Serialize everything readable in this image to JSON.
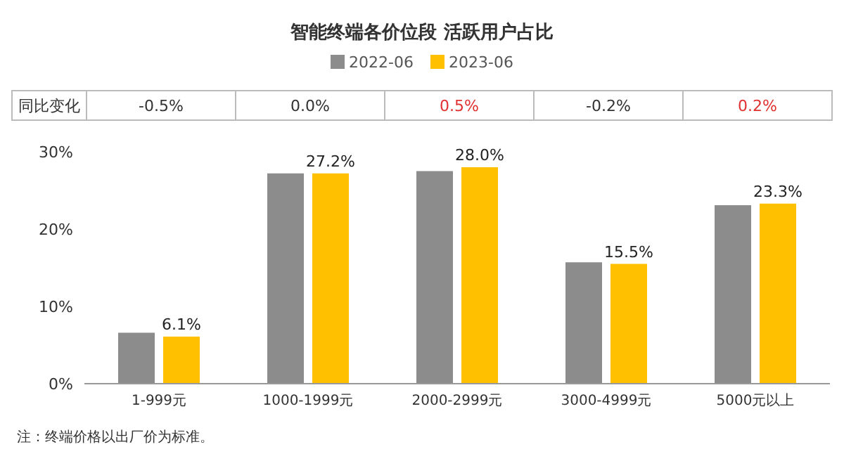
{
  "chart_data": {
    "type": "bar",
    "title": "智能终端各价位段 活跃用户占比",
    "categories": [
      "1-999元",
      "1000-1999元",
      "2000-2999元",
      "3000-4999元",
      "5000元以上"
    ],
    "series": [
      {
        "name": "2022-06",
        "color": "#8c8c8c",
        "values": [
          6.6,
          27.2,
          27.5,
          15.7,
          23.1
        ]
      },
      {
        "name": "2023-06",
        "color": "#ffc000",
        "values": [
          6.1,
          27.2,
          28.0,
          15.5,
          23.3
        ],
        "value_labels": [
          "6.1%",
          "27.2%",
          "28.0%",
          "15.5%",
          "23.3%"
        ]
      }
    ],
    "ylim": [
      0,
      30
    ],
    "yticks": [
      {
        "value": 0,
        "label": "0%"
      },
      {
        "value": 10,
        "label": "10%"
      },
      {
        "value": 20,
        "label": "20%"
      },
      {
        "value": 30,
        "label": "30%"
      }
    ],
    "grid": false,
    "legend": "top",
    "annotations": [
      "同比变化",
      "-0.5%",
      "0.0%",
      "0.5%",
      "-0.2%",
      "0.2%",
      "注：终端价格以出厂价为标准。"
    ]
  }
}
